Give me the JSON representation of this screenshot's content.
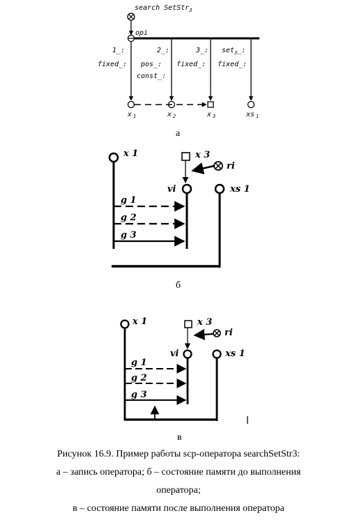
{
  "diagram_a": {
    "operator_name": "search SetStr",
    "operator_sub": "3",
    "op_label": "opi",
    "role_labels": {
      "r1": "1_:",
      "r2": "2_:",
      "r3": "3_:",
      "r4": "set",
      "r4_sub": "3",
      "r4_tail": "_:"
    },
    "modifier_labels": {
      "m1": "fixed_:",
      "m2": "pos_:",
      "m3": "fixed_:",
      "m4": "fixed_:",
      "m5": "const_:"
    },
    "nodes": {
      "n1": "x",
      "n1_sub": "1",
      "n2": "x",
      "n2_sub": "2",
      "n3": "x",
      "n3_sub": "3",
      "n4": "xs",
      "n4_sub": "1"
    },
    "sublabel": "а"
  },
  "diagram_b": {
    "x1": "x 1",
    "x3": "x 3",
    "ri": "ri",
    "vi": "vi",
    "xs1": "xs 1",
    "g1": "g 1",
    "g2": "g 2",
    "g3": "g 3",
    "sublabel": "б"
  },
  "diagram_c": {
    "x1": "x 1",
    "x3": "x 3",
    "ri": "ri",
    "vi": "vi",
    "xs1": "xs 1",
    "g1": "g 1",
    "g2": "g 2",
    "g3": "g 3",
    "sublabel": "в"
  },
  "caption": {
    "line1": "Рисунок 16.9. Пример работы scp-оператора searchSetStr3:",
    "line2": "а – запись оператора; б – состояние памяти до выполнения",
    "line3": "оператора;",
    "line4": "в – состояние памяти после выполнения оператора"
  }
}
